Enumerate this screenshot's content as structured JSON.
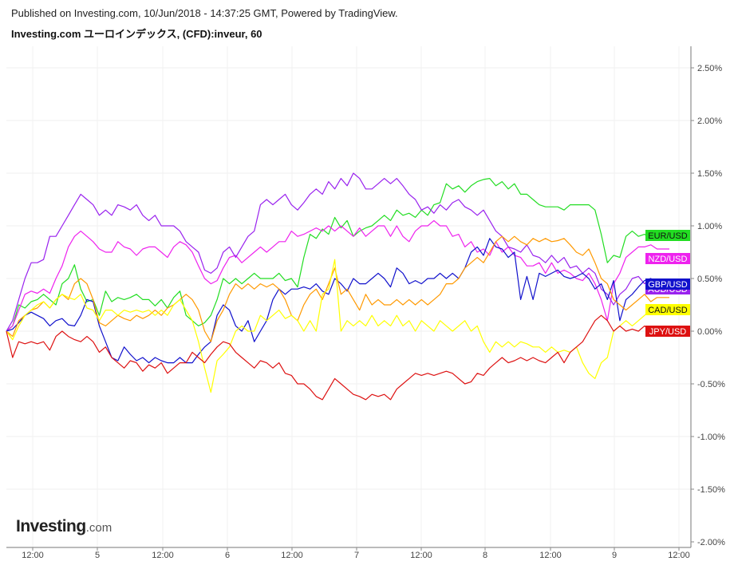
{
  "header": {
    "published": "Published on Investing.com, 10/Jun/2018 - 14:37:25 GMT, Powered by TradingView.",
    "title": "Investing.com ユーロインデックス, (CFD):inveur, 60"
  },
  "logo": {
    "main": "Investing",
    "suffix": ".com"
  },
  "chart_data": {
    "type": "line",
    "x_tick_labels": [
      "12:00",
      "5",
      "12:00",
      "6",
      "12:00",
      "7",
      "12:00",
      "8",
      "12:00",
      "9",
      "12:00"
    ],
    "y_tick_labels": [
      "2.50%",
      "2.00%",
      "1.50%",
      "1.00%",
      "0.50%",
      "0.00%",
      "-0.50%",
      "-1.00%",
      "-1.50%",
      "-2.00%"
    ],
    "ylim": [
      -2.0,
      2.5
    ],
    "xlim": [
      0,
      107
    ],
    "grid": true,
    "series": [
      {
        "name": "EUR/USD",
        "color": "#22dd22",
        "label_color": "#22dd22",
        "label_text_color": "#111111",
        "last": 0.91,
        "values": [
          0,
          0.05,
          0.25,
          0.22,
          0.28,
          0.3,
          0.35,
          0.3,
          0.25,
          0.45,
          0.5,
          0.63,
          0.4,
          0.28,
          0.3,
          0.15,
          0.38,
          0.28,
          0.32,
          0.3,
          0.32,
          0.35,
          0.3,
          0.3,
          0.24,
          0.3,
          0.22,
          0.32,
          0.38,
          0.15,
          0.1,
          0.05,
          0.08,
          0.15,
          0.3,
          0.5,
          0.45,
          0.5,
          0.45,
          0.5,
          0.55,
          0.5,
          0.5,
          0.5,
          0.55,
          0.48,
          0.5,
          0.42,
          0.7,
          0.92,
          0.88,
          0.97,
          0.92,
          1.08,
          0.98,
          1.05,
          0.9,
          0.95,
          0.98,
          1.0,
          1.05,
          1.1,
          1.05,
          1.15,
          1.1,
          1.12,
          1.08,
          1.15,
          1.1,
          1.2,
          1.22,
          1.4,
          1.35,
          1.38,
          1.32,
          1.38,
          1.42,
          1.44,
          1.45,
          1.38,
          1.42,
          1.35,
          1.4,
          1.3,
          1.3,
          1.25,
          1.2,
          1.18,
          1.18,
          1.18,
          1.15,
          1.2,
          1.2,
          1.2,
          1.2,
          1.15,
          0.92,
          0.65,
          0.72,
          0.7,
          0.9,
          0.95,
          0.9,
          0.92,
          0.88,
          0.9,
          0.91,
          0.91
        ]
      },
      {
        "name": "NZD/USD",
        "color": "#ee22ee",
        "label_color": "#ee22ee",
        "label_text_color": "#ffffff",
        "last": 0.78,
        "values": [
          0,
          0.05,
          0.2,
          0.35,
          0.38,
          0.36,
          0.4,
          0.36,
          0.5,
          0.62,
          0.8,
          0.9,
          0.95,
          0.9,
          0.85,
          0.78,
          0.75,
          0.75,
          0.85,
          0.8,
          0.78,
          0.72,
          0.78,
          0.8,
          0.8,
          0.75,
          0.7,
          0.8,
          0.85,
          0.82,
          0.75,
          0.62,
          0.5,
          0.45,
          0.48,
          0.6,
          0.7,
          0.72,
          0.65,
          0.7,
          0.75,
          0.8,
          0.75,
          0.8,
          0.85,
          0.85,
          0.95,
          0.9,
          0.92,
          0.95,
          0.98,
          0.95,
          1.0,
          0.95,
          1.0,
          0.95,
          0.9,
          0.98,
          0.9,
          0.95,
          1.0,
          1.0,
          0.9,
          1.0,
          0.9,
          0.85,
          0.95,
          1.0,
          1.0,
          1.05,
          1.0,
          1.0,
          0.9,
          0.92,
          0.8,
          0.85,
          0.75,
          0.78,
          0.72,
          0.85,
          0.75,
          0.8,
          0.72,
          0.7,
          0.62,
          0.62,
          0.65,
          0.55,
          0.65,
          0.55,
          0.58,
          0.55,
          0.5,
          0.48,
          0.55,
          0.45,
          0.3,
          0.1,
          0.45,
          0.55,
          0.7,
          0.75,
          0.8,
          0.8,
          0.82,
          0.78,
          0.78,
          0.78
        ]
      },
      {
        "name": "AUD/USD",
        "color": "#9922ee",
        "label_color": "#9922ee",
        "label_text_color": "#ffffff",
        "last": 0.43,
        "values": [
          0,
          0.1,
          0.3,
          0.5,
          0.65,
          0.65,
          0.68,
          0.9,
          0.9,
          1.0,
          1.1,
          1.2,
          1.3,
          1.25,
          1.2,
          1.1,
          1.15,
          1.1,
          1.2,
          1.18,
          1.15,
          1.2,
          1.1,
          1.05,
          1.1,
          1.0,
          1.0,
          1.0,
          0.95,
          0.85,
          0.8,
          0.75,
          0.58,
          0.55,
          0.6,
          0.75,
          0.8,
          0.7,
          0.8,
          0.9,
          0.95,
          1.2,
          1.25,
          1.2,
          1.25,
          1.3,
          1.2,
          1.15,
          1.22,
          1.3,
          1.35,
          1.3,
          1.42,
          1.35,
          1.45,
          1.38,
          1.5,
          1.45,
          1.35,
          1.35,
          1.4,
          1.45,
          1.4,
          1.45,
          1.38,
          1.3,
          1.25,
          1.15,
          1.18,
          1.12,
          1.2,
          1.15,
          1.22,
          1.25,
          1.18,
          1.15,
          1.1,
          1.15,
          1.05,
          0.95,
          0.9,
          0.8,
          0.78,
          0.75,
          0.82,
          0.72,
          0.7,
          0.65,
          0.72,
          0.65,
          0.7,
          0.6,
          0.62,
          0.55,
          0.6,
          0.55,
          0.4,
          0.35,
          0.25,
          0.35,
          0.4,
          0.5,
          0.52,
          0.45,
          0.5,
          0.45,
          0.48,
          0.43
        ]
      },
      {
        "name": "GBP/USD",
        "color": "#1111cc",
        "label_color": "#1111cc",
        "label_text_color": "#ffffff",
        "last": 0.47,
        "values": [
          0,
          0.02,
          0.08,
          0.15,
          0.18,
          0.15,
          0.12,
          0.05,
          0.1,
          0.12,
          0.06,
          0.05,
          0.15,
          0.3,
          0.28,
          0.05,
          -0.1,
          -0.25,
          -0.28,
          -0.15,
          -0.22,
          -0.28,
          -0.25,
          -0.3,
          -0.25,
          -0.28,
          -0.3,
          -0.3,
          -0.25,
          -0.3,
          -0.3,
          -0.22,
          -0.15,
          -0.1,
          0.15,
          0.25,
          0.2,
          0.05,
          0.0,
          0.1,
          -0.1,
          0.0,
          0.1,
          0.3,
          0.4,
          0.35,
          0.4,
          0.4,
          0.42,
          0.4,
          0.45,
          0.38,
          0.35,
          0.5,
          0.45,
          0.38,
          0.5,
          0.45,
          0.45,
          0.5,
          0.55,
          0.5,
          0.42,
          0.6,
          0.55,
          0.45,
          0.48,
          0.45,
          0.5,
          0.5,
          0.55,
          0.5,
          0.55,
          0.5,
          0.6,
          0.75,
          0.8,
          0.72,
          0.88,
          0.8,
          0.78,
          0.7,
          0.75,
          0.3,
          0.52,
          0.3,
          0.55,
          0.52,
          0.55,
          0.58,
          0.52,
          0.5,
          0.52,
          0.55,
          0.5,
          0.4,
          0.45,
          0.3,
          0.48,
          0.1,
          0.3,
          0.35,
          0.42,
          0.48,
          0.5,
          0.45,
          0.47,
          0.47
        ]
      },
      {
        "name": "CAD/USD",
        "color": "#ff9900",
        "label_color": "#ffff00",
        "label_text_color": "#111111",
        "last": 0.32,
        "values": [
          0,
          -0.05,
          0.1,
          0.15,
          0.2,
          0.22,
          0.28,
          0.22,
          0.3,
          0.35,
          0.3,
          0.45,
          0.5,
          0.45,
          0.3,
          0.08,
          0.05,
          0.1,
          0.15,
          0.12,
          0.1,
          0.15,
          0.12,
          0.15,
          0.2,
          0.15,
          0.22,
          0.25,
          0.3,
          0.35,
          0.3,
          0.2,
          0.0,
          -0.1,
          0.1,
          0.2,
          0.35,
          0.45,
          0.4,
          0.45,
          0.4,
          0.45,
          0.42,
          0.45,
          0.4,
          0.3,
          0.15,
          0.1,
          0.25,
          0.35,
          0.4,
          0.3,
          0.45,
          0.6,
          0.35,
          0.4,
          0.3,
          0.2,
          0.35,
          0.25,
          0.3,
          0.25,
          0.25,
          0.3,
          0.25,
          0.3,
          0.25,
          0.3,
          0.25,
          0.3,
          0.35,
          0.45,
          0.45,
          0.5,
          0.6,
          0.65,
          0.7,
          0.65,
          0.75,
          0.85,
          0.9,
          0.85,
          0.9,
          0.85,
          0.82,
          0.88,
          0.85,
          0.88,
          0.85,
          0.86,
          0.88,
          0.82,
          0.75,
          0.72,
          0.78,
          0.65,
          0.5,
          0.45,
          0.3,
          0.25,
          0.2,
          0.25,
          0.3,
          0.35,
          0.28,
          0.32,
          0.32,
          0.32
        ]
      },
      {
        "name": "CAD/USD-yellow",
        "color": "#ffff00",
        "last": 0.2,
        "values": [
          0,
          -0.08,
          0.05,
          0.15,
          0.2,
          0.25,
          0.28,
          0.22,
          0.3,
          0.35,
          0.32,
          0.3,
          0.35,
          0.22,
          0.2,
          0.1,
          0.2,
          0.2,
          0.15,
          0.2,
          0.18,
          0.2,
          0.18,
          0.2,
          0.15,
          0.2,
          0.15,
          0.25,
          0.3,
          0.2,
          0.1,
          -0.1,
          -0.35,
          -0.58,
          -0.28,
          -0.22,
          -0.15,
          0.0,
          0.05,
          0.0,
          0.0,
          0.15,
          0.1,
          0.15,
          0.2,
          0.12,
          0.15,
          0.1,
          0.0,
          0.1,
          0.0,
          0.35,
          0.4,
          0.68,
          0.0,
          0.1,
          0.05,
          0.1,
          0.05,
          0.15,
          0.05,
          0.1,
          0.05,
          0.15,
          0.05,
          0.1,
          0.0,
          0.1,
          0.05,
          0.0,
          0.1,
          0.05,
          0.0,
          0.05,
          0.1,
          0.0,
          0.05,
          -0.1,
          -0.2,
          -0.1,
          -0.15,
          -0.1,
          -0.15,
          -0.1,
          -0.12,
          -0.15,
          -0.15,
          -0.2,
          -0.15,
          -0.2,
          -0.18,
          -0.2,
          -0.15,
          -0.3,
          -0.4,
          -0.45,
          -0.3,
          -0.25,
          0.0,
          0.05,
          0.1,
          0.05,
          0.1,
          0.15,
          0.2,
          0.2,
          0.2,
          0.2
        ]
      },
      {
        "name": "JPY/USD",
        "color": "#dd1111",
        "label_color": "#dd1111",
        "label_text_color": "#ffffff",
        "last": 0.02,
        "values": [
          0,
          -0.25,
          -0.1,
          -0.12,
          -0.1,
          -0.12,
          -0.1,
          -0.18,
          -0.05,
          0.0,
          -0.05,
          -0.08,
          -0.1,
          -0.05,
          -0.1,
          -0.2,
          -0.15,
          -0.25,
          -0.3,
          -0.35,
          -0.28,
          -0.3,
          -0.38,
          -0.32,
          -0.35,
          -0.3,
          -0.4,
          -0.35,
          -0.3,
          -0.3,
          -0.2,
          -0.25,
          -0.3,
          -0.22,
          -0.15,
          -0.1,
          -0.12,
          -0.2,
          -0.25,
          -0.3,
          -0.35,
          -0.28,
          -0.3,
          -0.35,
          -0.3,
          -0.4,
          -0.42,
          -0.5,
          -0.5,
          -0.55,
          -0.62,
          -0.65,
          -0.55,
          -0.45,
          -0.5,
          -0.55,
          -0.6,
          -0.62,
          -0.65,
          -0.6,
          -0.62,
          -0.6,
          -0.65,
          -0.55,
          -0.5,
          -0.45,
          -0.4,
          -0.42,
          -0.4,
          -0.42,
          -0.4,
          -0.38,
          -0.4,
          -0.45,
          -0.5,
          -0.48,
          -0.4,
          -0.42,
          -0.35,
          -0.3,
          -0.25,
          -0.3,
          -0.28,
          -0.25,
          -0.28,
          -0.25,
          -0.28,
          -0.3,
          -0.25,
          -0.2,
          -0.3,
          -0.2,
          -0.15,
          -0.1,
          0.0,
          0.1,
          0.15,
          0.1,
          0.0,
          0.05,
          0.0,
          0.02,
          0.0,
          0.05,
          0.0,
          0.02,
          0.02,
          0.02
        ]
      }
    ]
  }
}
